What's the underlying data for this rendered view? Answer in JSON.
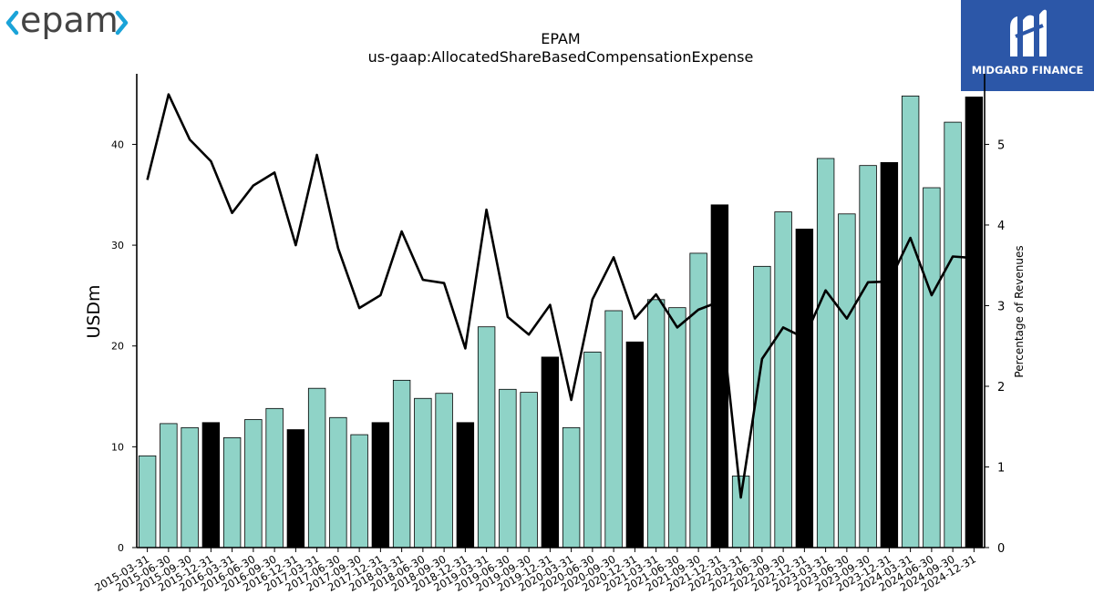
{
  "logos": {
    "left_text": "epam",
    "right_text": "MIDGARD FINANCE"
  },
  "colors": {
    "bar_fill": "#8fd3c7",
    "bar_highlight": "#000000",
    "line": "#000000",
    "logo_left": "#444444",
    "logo_accent": "#1aa3d8",
    "logo_right_bg": "#2c57a8"
  },
  "chart_data": {
    "type": "bar",
    "title": "EPAM",
    "subtitle": "us-gaap:AllocatedShareBasedCompensationExpense",
    "ylabel": "USDm",
    "y2label": "Percentage of Revenues",
    "ylim": [
      0,
      47
    ],
    "y2lim": [
      0,
      5.875
    ],
    "yticks": [
      0,
      10,
      20,
      30,
      40
    ],
    "y2ticks": [
      0,
      1,
      2,
      3,
      4,
      5
    ],
    "grid": false,
    "categories": [
      "2015-03-31",
      "2015-06-30",
      "2015-09-30",
      "2015-12-31",
      "2016-03-31",
      "2016-06-30",
      "2016-09-30",
      "2016-12-31",
      "2017-03-31",
      "2017-06-30",
      "2017-09-30",
      "2017-12-31",
      "2018-03-31",
      "2018-06-30",
      "2018-09-30",
      "2018-12-31",
      "2019-03-31",
      "2019-06-30",
      "2019-09-30",
      "2019-12-31",
      "2020-03-31",
      "2020-06-30",
      "2020-09-30",
      "2020-12-31",
      "2021-03-31",
      "2021-06-30",
      "2021-09-30",
      "2021-12-31",
      "2022-03-31",
      "2022-06-30",
      "2022-09-30",
      "2022-12-31",
      "2023-03-31",
      "2023-06-30",
      "2023-09-30",
      "2023-12-31",
      "2024-03-31",
      "2024-06-30",
      "2024-09-30",
      "2024-12-31"
    ],
    "series": [
      {
        "type": "bar",
        "values": [
          9.1,
          12.3,
          11.9,
          12.4,
          10.9,
          12.7,
          13.8,
          11.7,
          15.8,
          12.9,
          11.2,
          12.4,
          16.6,
          14.8,
          15.3,
          12.4,
          21.9,
          15.7,
          15.4,
          18.9,
          11.9,
          19.4,
          23.5,
          20.4,
          24.6,
          23.8,
          29.2,
          34.0,
          7.1,
          27.9,
          33.3,
          31.6,
          38.6,
          33.1,
          37.9,
          38.2,
          44.8,
          35.7,
          42.2,
          44.7
        ],
        "highlight": [
          false,
          false,
          false,
          true,
          false,
          false,
          false,
          true,
          false,
          false,
          false,
          true,
          false,
          false,
          false,
          true,
          false,
          false,
          false,
          true,
          false,
          false,
          false,
          true,
          false,
          false,
          false,
          true,
          false,
          false,
          false,
          true,
          false,
          false,
          false,
          true,
          false,
          false,
          false,
          true
        ]
      },
      {
        "type": "line",
        "axis": "right",
        "values": [
          4.56,
          5.62,
          5.06,
          4.79,
          4.15,
          4.49,
          4.65,
          3.75,
          4.87,
          3.71,
          2.97,
          3.13,
          3.92,
          3.32,
          3.28,
          2.47,
          4.19,
          2.86,
          2.64,
          3.01,
          1.83,
          3.08,
          3.6,
          2.84,
          3.14,
          2.73,
          2.95,
          3.05,
          0.62,
          2.34,
          2.73,
          2.6,
          3.19,
          2.84,
          3.29,
          3.3,
          3.84,
          3.13,
          3.61,
          3.59
        ]
      }
    ]
  }
}
